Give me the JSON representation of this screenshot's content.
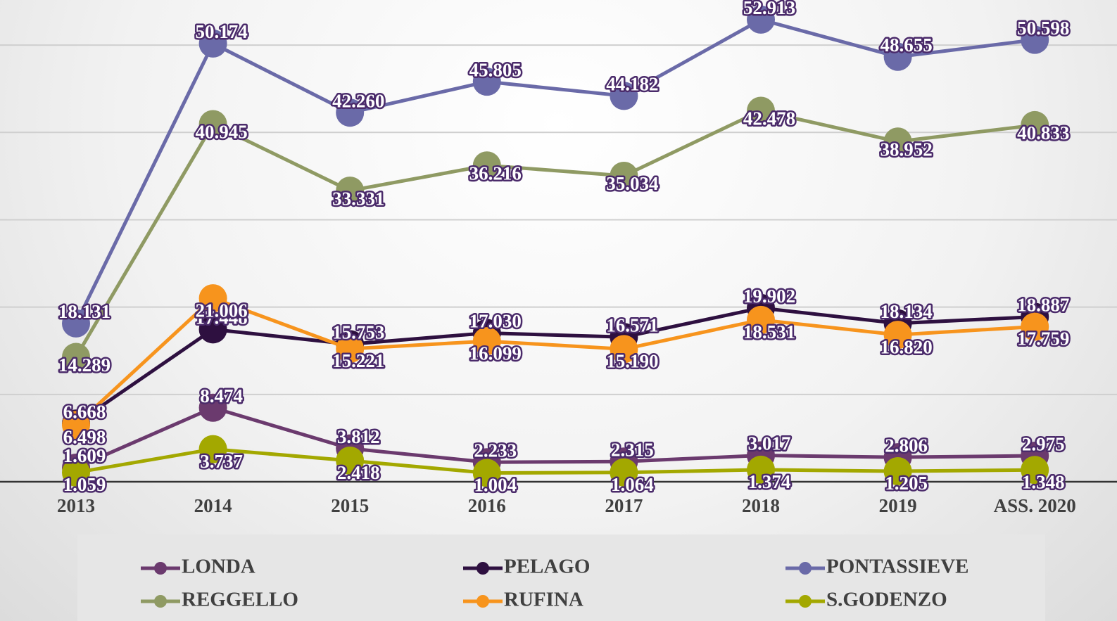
{
  "chart_data": {
    "type": "line",
    "categories": [
      "2013",
      "2014",
      "2015",
      "2016",
      "2017",
      "2018",
      "2019",
      "ASS. 2020"
    ],
    "ylim": [
      0,
      55000
    ],
    "yticks": [
      0,
      10000,
      20000,
      30000,
      40000,
      50000
    ],
    "grid": true,
    "legend": "bottom",
    "series": [
      {
        "name": "LONDA",
        "color": "#6b3a6e",
        "values": [
          1609,
          8474,
          3812,
          2233,
          2315,
          3017,
          2806,
          2975
        ],
        "value_labels": [
          "1.609",
          "8.474",
          "3.812",
          "2.233",
          "2.315",
          "3.017",
          "2.806",
          "2.975"
        ]
      },
      {
        "name": "PELAGO",
        "color": "#2e1040",
        "values": [
          6668,
          17448,
          15753,
          17030,
          16571,
          19902,
          18134,
          18887
        ],
        "value_labels": [
          "6.668",
          "17.448",
          "15.753",
          "17.030",
          "16.571",
          "19.902",
          "18.134",
          "18.887"
        ]
      },
      {
        "name": "PONTASSIEVE",
        "color": "#6a6aa8",
        "values": [
          18131,
          50174,
          42260,
          45805,
          44182,
          52913,
          48655,
          50598
        ],
        "value_labels": [
          "18.131",
          "50.174",
          "42.260",
          "45.805",
          "44.182",
          "52.913",
          "48.655",
          "50.598"
        ]
      },
      {
        "name": "REGGELLO",
        "color": "#8f9a63",
        "values": [
          14289,
          40945,
          33331,
          36216,
          35034,
          42478,
          38952,
          40833
        ],
        "value_labels": [
          "14.289",
          "40.945",
          "33.331",
          "36.216",
          "35.034",
          "42.478",
          "38.952",
          "40.833"
        ]
      },
      {
        "name": "RUFINA",
        "color": "#f7941d",
        "values": [
          6498,
          21006,
          15221,
          16099,
          15190,
          18531,
          16820,
          17759
        ],
        "value_labels": [
          "6.498",
          "21.006",
          "15.221",
          "16.099",
          "15.190",
          "18.531",
          "16.820",
          "17.759"
        ]
      },
      {
        "name": "S.GODENZO",
        "color": "#a3a800",
        "values": [
          1059,
          3737,
          2418,
          1004,
          1064,
          1374,
          1205,
          1348
        ],
        "value_labels": [
          "1.059",
          "3.737",
          "2.418",
          "1.004",
          "1.064",
          "1.374",
          "1.205",
          "1.348"
        ]
      }
    ]
  }
}
